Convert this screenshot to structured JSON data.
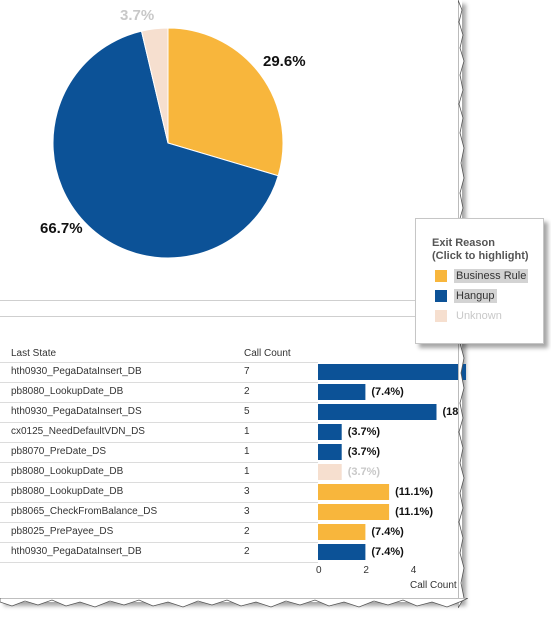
{
  "colors": {
    "business_rule": "#F8B63C",
    "hangup": "#0C5297",
    "unknown": "#F6DFCF"
  },
  "chart_data": [
    {
      "type": "pie",
      "title": "",
      "slices": [
        {
          "name": "Business Rule",
          "value": 29.6,
          "label": "29.6%",
          "color": "#F8B63C"
        },
        {
          "name": "Hangup",
          "value": 66.7,
          "label": "66.7%",
          "color": "#0C5297"
        },
        {
          "name": "Unknown",
          "value": 3.7,
          "label": "3.7%",
          "color": "#F6DFCF"
        }
      ]
    },
    {
      "type": "bar",
      "orientation": "horizontal",
      "xlabel": "Call Count",
      "xlim": [
        0,
        6
      ],
      "x_ticks": [
        "0",
        "2",
        "4",
        "6"
      ],
      "rows": [
        {
          "state": "hth0930_PegaDataInsert_DB",
          "count": "7",
          "value": 7,
          "reason": "hangup",
          "label": ""
        },
        {
          "state": "pb8080_LookupDate_DB",
          "count": "2",
          "value": 2,
          "reason": "hangup",
          "label": "(7.4%)"
        },
        {
          "state": "hth0930_PegaDataInsert_DS",
          "count": "5",
          "value": 5,
          "reason": "hangup",
          "label": "(18"
        },
        {
          "state": "cx0125_NeedDefaultVDN_DS",
          "count": "1",
          "value": 1,
          "reason": "hangup",
          "label": "(3.7%)"
        },
        {
          "state": "pb8070_PreDate_DS",
          "count": "1",
          "value": 1,
          "reason": "hangup",
          "label": "(3.7%)"
        },
        {
          "state": "pb8080_LookupDate_DB",
          "count": "1",
          "value": 1,
          "reason": "unknown",
          "label": "(3.7%)"
        },
        {
          "state": "pb8080_LookupDate_DB",
          "count": "3",
          "value": 3,
          "reason": "business_rule",
          "label": "(11.1%)"
        },
        {
          "state": "pb8065_CheckFromBalance_DS",
          "count": "3",
          "value": 3,
          "reason": "business_rule",
          "label": "(11.1%)"
        },
        {
          "state": "pb8025_PrePayee_DS",
          "count": "2",
          "value": 2,
          "reason": "business_rule",
          "label": "(7.4%)"
        },
        {
          "state": "hth0930_PegaDataInsert_DB",
          "count": "2",
          "value": 2,
          "reason": "hangup",
          "label": "(7.4%)"
        }
      ]
    }
  ],
  "legend": {
    "title_line1": "Exit Reason",
    "title_line2": "(Click to highlight)",
    "items": [
      {
        "label": "Business Rule",
        "color": "#F8B63C",
        "state": "highlighted"
      },
      {
        "label": "Hangup",
        "color": "#0C5297",
        "state": "highlighted"
      },
      {
        "label": "Unknown",
        "color": "#F6DFCF",
        "state": "dimmed"
      }
    ]
  },
  "table": {
    "col_state": "Last State",
    "col_count": "Call Count"
  }
}
